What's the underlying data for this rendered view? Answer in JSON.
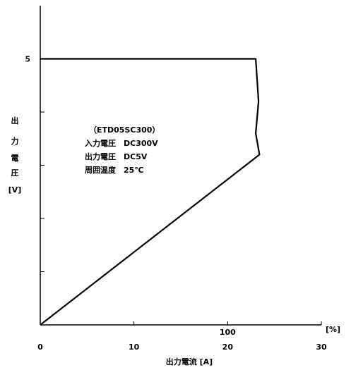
{
  "chart_data": {
    "type": "line",
    "title": "",
    "xlabel": "出力電流 [A]",
    "ylabel_chars": [
      "出",
      "力",
      "電",
      "圧",
      "[V]"
    ],
    "x_unit_label": "[%]",
    "xlim": [
      0,
      30
    ],
    "ylim": [
      0,
      6
    ],
    "x_ticks": [
      0,
      10,
      20,
      30
    ],
    "x_tick_labels": [
      "0",
      "10",
      "20",
      "30"
    ],
    "x_percent_label": "100",
    "x_percent_at": 20,
    "y_ticks": [
      1,
      2,
      3,
      4,
      5
    ],
    "y_tick_labels": [
      "",
      "",
      "",
      "",
      "5"
    ],
    "grid": false,
    "series": [
      {
        "x": [
          0,
          23,
          23.3,
          23.0,
          23.4,
          0
        ],
        "y": [
          5,
          5,
          4.2,
          3.6,
          3.2,
          0
        ]
      }
    ],
    "annotation": {
      "lines": [
        "（ETD05SC300）",
        "入力電圧　DC300V",
        "出力電圧　DC5V",
        "周囲温度　25℃"
      ]
    }
  }
}
